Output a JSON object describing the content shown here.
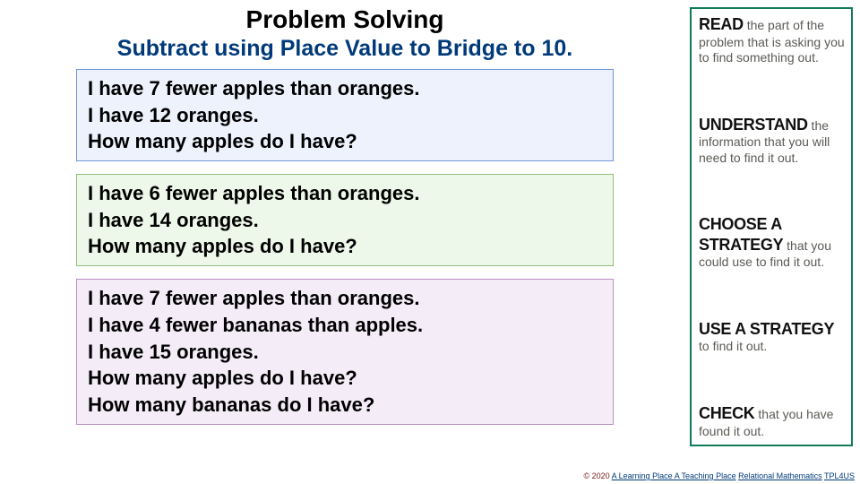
{
  "title": "Problem Solving",
  "subtitle": "Subtract using Place Value to Bridge to 10.",
  "subtitle_color": "#003a7a",
  "problems": [
    {
      "lines": [
        "I have 7 fewer apples than oranges.",
        "I have 12 oranges.",
        "How many apples do I have?"
      ],
      "bg": "#eef2fc",
      "border": "#7095db"
    },
    {
      "lines": [
        "I have 6 fewer apples than oranges.",
        "I have 14 oranges.",
        "How many apples do I have?"
      ],
      "bg": "#eef8ea",
      "border": "#8dc07a"
    },
    {
      "lines": [
        "I have 7 fewer apples than oranges.",
        "I have 4 fewer bananas than apples.",
        "I have 15 oranges.",
        "How many apples do I have?",
        "How many bananas do I have?"
      ],
      "bg": "#f4edf7",
      "border": "#b78fc6"
    }
  ],
  "strategy_box": {
    "border_color": "#127a5a",
    "steps": [
      {
        "keyword": "READ",
        "rest": " the part of the problem that is asking you to find something out."
      },
      {
        "keyword": "UNDERSTAND",
        "rest": " the information that you will need to find it out."
      },
      {
        "keyword": "CHOOSE A STRATEGY",
        "rest": " that you could use to find it out."
      },
      {
        "keyword": "USE A STRATEGY",
        "rest": " to find it out."
      },
      {
        "keyword": "CHECK",
        "rest": " that you have found it out."
      }
    ]
  },
  "footer": {
    "copyright": "© 2020",
    "link1": "A Learning Place A Teaching Place",
    "link2": "Relational Mathematics",
    "link3": "TPL4US"
  }
}
